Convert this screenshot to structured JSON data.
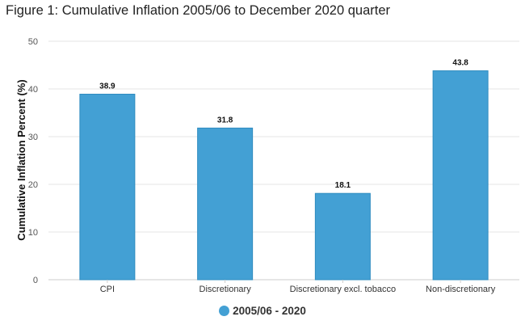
{
  "title": "Figure 1: Cumulative Inflation 2005/06 to December 2020 quarter",
  "colors": {
    "bar": "#43a0d4",
    "bar_border": "#2f8cc0",
    "grid": "#e6e6e6",
    "axis": "#cccccc"
  },
  "chart_data": {
    "type": "bar",
    "title": "Figure 1: Cumulative Inflation 2005/06 to December 2020 quarter",
    "categories": [
      "CPI",
      "Discretionary",
      "Discretionary excl. tobacco",
      "Non-discretionary"
    ],
    "series": [
      {
        "name": "2005/06 - 2020",
        "values": [
          38.9,
          31.8,
          18.1,
          43.8
        ],
        "color": "#43a0d4"
      }
    ],
    "xlabel": "",
    "ylabel": "Cumulative Inflation Percent (%)",
    "ylim": [
      0,
      50
    ],
    "yticks": [
      0,
      10,
      20,
      30,
      40,
      50
    ],
    "grid": true,
    "legend": "bottom-center",
    "data_labels": true
  }
}
